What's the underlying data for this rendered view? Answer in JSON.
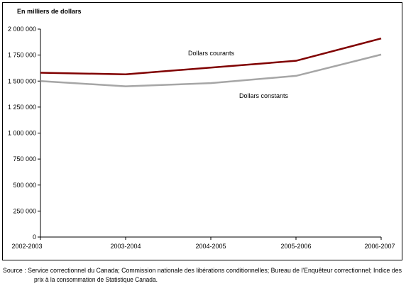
{
  "chart_data": {
    "type": "line",
    "title": "",
    "xlabel": "",
    "ylabel": "En milliers de dollars",
    "categories": [
      "2002-2003",
      "2003-2004",
      "2004-2005",
      "2005-2006",
      "2006-2007"
    ],
    "series": [
      {
        "name": "Dollars courants",
        "values": [
          1580000,
          1565000,
          1630000,
          1695000,
          1910000
        ],
        "color": "#800000"
      },
      {
        "name": "Dollars constants",
        "values": [
          1500000,
          1450000,
          1480000,
          1550000,
          1755000
        ],
        "color": "#A6A6A6"
      }
    ],
    "ylim": [
      0,
      2000000
    ],
    "yticks": [
      0,
      250000,
      500000,
      750000,
      1000000,
      1250000,
      1500000,
      1750000,
      2000000
    ],
    "ytick_labels": [
      "0",
      "250 000",
      "500 000",
      "750 000",
      "1 000 000",
      "1 250 000",
      "1 500 000",
      "1 750 000",
      "2 000 000"
    ],
    "grid": false
  },
  "source": {
    "line1": "Source : Service correctionnel du Canada; Commission nationale des libérations conditionnelles; Bureau de l'Enquêteur correctionnel; Indice des",
    "line2": "prix à la consommation de Statistique Canada."
  }
}
